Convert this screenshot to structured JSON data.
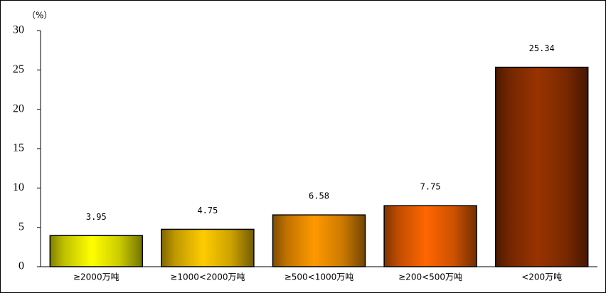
{
  "chart_data": {
    "type": "bar",
    "y_label": "（%）",
    "categories": [
      "≥2000万吨",
      "≥1000<2000万吨",
      "≥500<1000万吨",
      "≥200<500万吨",
      "<200万吨"
    ],
    "values": [
      3.95,
      4.75,
      6.58,
      7.75,
      25.34
    ],
    "colors": [
      "#ffff00",
      "#ffcc00",
      "#ff9900",
      "#ff6600",
      "#993300"
    ],
    "ylim": [
      0,
      30
    ],
    "yticks": [
      0,
      5,
      10,
      15,
      20,
      25,
      30
    ],
    "grid": false
  }
}
